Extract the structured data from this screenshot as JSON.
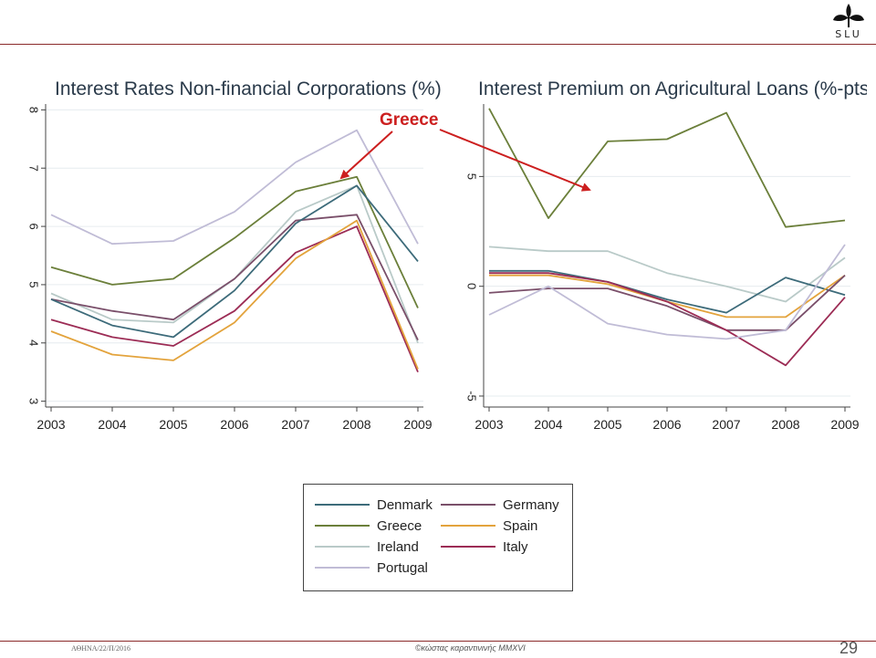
{
  "logo": {
    "text": "SLU"
  },
  "annotation": {
    "label": "Greece",
    "color": "#cc1f1f"
  },
  "footer": {
    "left": "ΑΘΗΝΑ/22/Π/2016",
    "center": "©κώστας καραντινινής MMXVI",
    "page": "29"
  },
  "colors": {
    "Denmark": "#3d6b7a",
    "Germany": "#7a4f6a",
    "Greece": "#6b7f3a",
    "Spain": "#e3a33c",
    "Ireland": "#b9cac8",
    "Italy": "#9c2c55",
    "Portugal": "#c0bcd6"
  },
  "legend": {
    "items": [
      {
        "name": "Denmark",
        "column": 0,
        "row": 0
      },
      {
        "name": "Germany",
        "column": 1,
        "row": 0
      },
      {
        "name": "Greece",
        "column": 0,
        "row": 1
      },
      {
        "name": "Spain",
        "column": 1,
        "row": 1
      },
      {
        "name": "Ireland",
        "column": 0,
        "row": 2
      },
      {
        "name": "Italy",
        "column": 1,
        "row": 2
      },
      {
        "name": "Portugal",
        "column": 0,
        "row": 3
      }
    ]
  },
  "chart_data": [
    {
      "type": "line",
      "title": "Interest Rates Non-financial Corporations (%)",
      "x": [
        2003,
        2004,
        2005,
        2006,
        2007,
        2008,
        2009
      ],
      "xticks": [
        "2003",
        "2004",
        "2005",
        "2006",
        "2007",
        "2008",
        "2009"
      ],
      "yticks": [
        "3",
        "4",
        "5",
        "6",
        "7",
        "8"
      ],
      "ytick_values": [
        3,
        4,
        5,
        6,
        7,
        8
      ],
      "xlim": [
        2003,
        2009
      ],
      "ylim": [
        2.9,
        8.1
      ],
      "grid": "horizontal",
      "series": [
        {
          "name": "Portugal",
          "values": [
            6.2,
            5.7,
            5.75,
            6.25,
            7.1,
            7.65,
            5.7
          ]
        },
        {
          "name": "Greece",
          "values": [
            5.3,
            5.0,
            5.1,
            5.8,
            6.6,
            6.85,
            4.6
          ]
        },
        {
          "name": "Ireland",
          "values": [
            4.85,
            4.4,
            4.35,
            5.1,
            6.25,
            6.7,
            4.0
          ]
        },
        {
          "name": "Germany",
          "values": [
            4.75,
            4.55,
            4.4,
            5.1,
            6.1,
            6.2,
            4.05
          ]
        },
        {
          "name": "Denmark",
          "values": [
            4.75,
            4.3,
            4.1,
            4.9,
            6.05,
            6.7,
            5.4
          ]
        },
        {
          "name": "Italy",
          "values": [
            4.4,
            4.1,
            3.95,
            4.55,
            5.55,
            6.0,
            3.5
          ]
        },
        {
          "name": "Spain",
          "values": [
            4.2,
            3.8,
            3.7,
            4.35,
            5.45,
            6.1,
            3.55
          ]
        }
      ]
    },
    {
      "type": "line",
      "title": "Interest Premium on Agricultural Loans (%-pts)",
      "x": [
        2003,
        2004,
        2005,
        2006,
        2007,
        2008,
        2009
      ],
      "xticks": [
        "2003",
        "2004",
        "2005",
        "2006",
        "2007",
        "2008",
        "2009"
      ],
      "yticks": [
        "-5",
        "0",
        "5"
      ],
      "ytick_values": [
        -5,
        0,
        5
      ],
      "xlim": [
        2003,
        2009
      ],
      "ylim": [
        -5.5,
        8.3
      ],
      "grid": "horizontal",
      "series": [
        {
          "name": "Greece",
          "values": [
            8.1,
            3.1,
            6.6,
            6.7,
            7.9,
            2.7,
            3.0
          ]
        },
        {
          "name": "Ireland",
          "values": [
            1.8,
            1.6,
            1.6,
            0.6,
            0.0,
            -0.7,
            1.3
          ]
        },
        {
          "name": "Denmark",
          "values": [
            0.7,
            0.7,
            0.2,
            -0.6,
            -1.2,
            0.4,
            -0.4
          ]
        },
        {
          "name": "Spain",
          "values": [
            0.5,
            0.5,
            0.1,
            -0.7,
            -1.4,
            -1.4,
            0.5
          ]
        },
        {
          "name": "Germany",
          "values": [
            -0.3,
            -0.1,
            -0.1,
            -0.9,
            -2.0,
            -2.0,
            0.5
          ]
        },
        {
          "name": "Italy",
          "values": [
            0.6,
            0.6,
            0.2,
            -0.7,
            -2.0,
            -3.6,
            -0.5
          ]
        },
        {
          "name": "Portugal",
          "values": [
            -1.3,
            0.0,
            -1.7,
            -2.2,
            -2.4,
            -2.0,
            1.9
          ]
        }
      ]
    }
  ]
}
